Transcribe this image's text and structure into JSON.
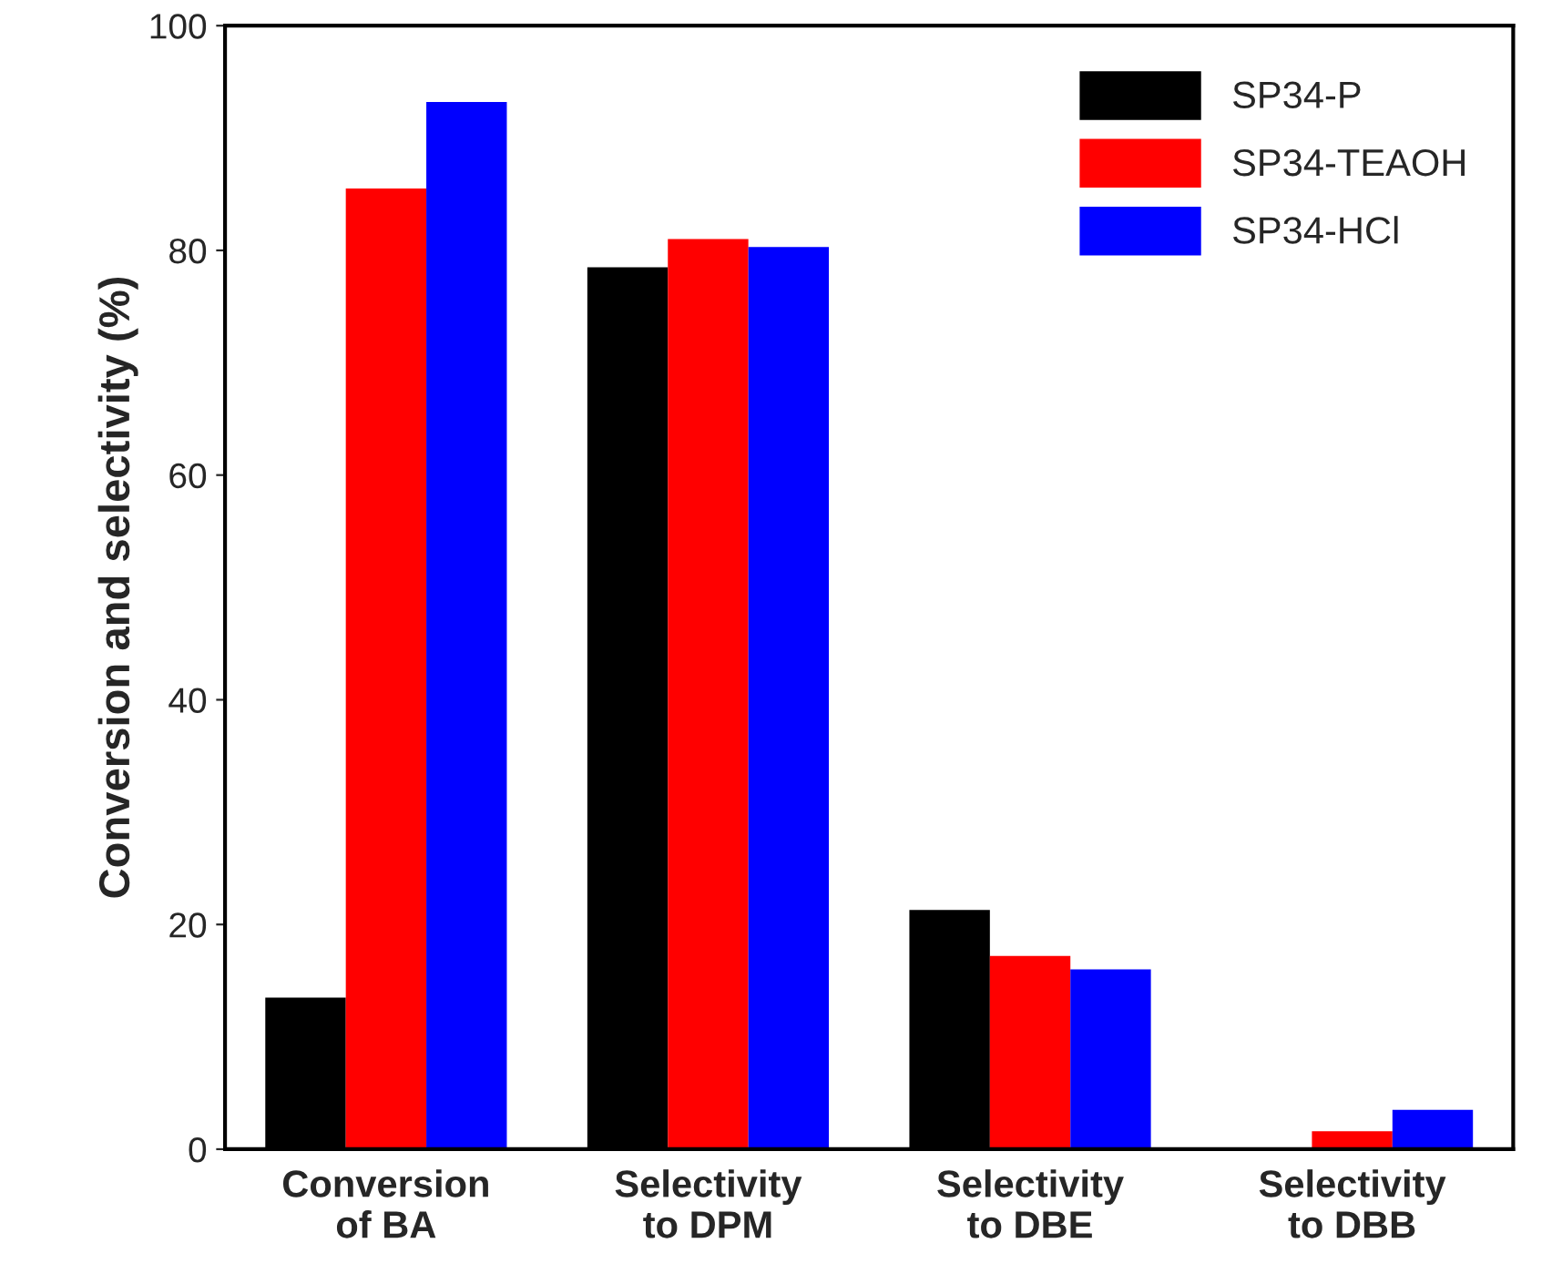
{
  "chart_data": {
    "type": "bar",
    "ylabel": "Conversion and selectivity (%)",
    "categories": [
      "Conversion\nof BA",
      "Selectivity\nto DPM",
      "Selectivity\nto DBE",
      "Selectivity\nto DBB"
    ],
    "series": [
      {
        "name": "SP34-P",
        "color": "#000000",
        "values": [
          13.5,
          78.5,
          21.3,
          0
        ]
      },
      {
        "name": "SP34-TEAOH",
        "color": "#ff0000",
        "values": [
          85.5,
          81.0,
          17.2,
          1.6
        ]
      },
      {
        "name": "SP34-HCl",
        "color": "#0000ff",
        "values": [
          93.2,
          80.3,
          16.0,
          3.5
        ]
      }
    ],
    "ylim": [
      0,
      100
    ],
    "yticks": [
      0,
      20,
      40,
      60,
      80,
      100
    ],
    "grid": false,
    "legend": "top right"
  }
}
